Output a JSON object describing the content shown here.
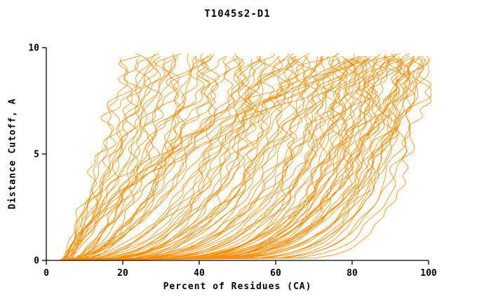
{
  "chart_data": {
    "type": "line",
    "title": "T1045s2-D1",
    "xlabel": "Percent of Residues (CA)",
    "ylabel": "Distance Cutoff, A",
    "xlim": [
      0,
      100
    ],
    "ylim": [
      0,
      10
    ],
    "x_ticks": [
      0,
      20,
      40,
      60,
      80,
      100
    ],
    "y_ticks": [
      0,
      5,
      10
    ],
    "grid": false,
    "legend": null,
    "line_color": "#ff8c00",
    "axis_color": "#000000",
    "background": "#ffffff",
    "y_top_reach": 9.7,
    "curve_param_format": [
      "x_percent_at_cutoff_0",
      "x_percent_at_cutoff_10",
      "shape_exponent"
    ],
    "curves": [
      [
        5,
        22,
        1.2
      ],
      [
        4,
        24,
        1.4
      ],
      [
        6,
        26,
        1.1
      ],
      [
        5,
        28,
        1.6
      ],
      [
        4,
        30,
        1.3
      ],
      [
        6,
        32,
        1.8
      ],
      [
        5,
        34,
        1.2
      ],
      [
        7,
        36,
        1.5
      ],
      [
        4,
        38,
        1.9
      ],
      [
        6,
        40,
        1.4
      ],
      [
        5,
        42,
        2.2
      ],
      [
        8,
        44,
        1.6
      ],
      [
        4,
        46,
        2.0
      ],
      [
        6,
        48,
        1.3
      ],
      [
        5,
        25,
        0.9
      ],
      [
        7,
        29,
        1.0
      ],
      [
        4,
        33,
        2.4
      ],
      [
        6,
        37,
        1.1
      ],
      [
        5,
        41,
        2.6
      ],
      [
        8,
        45,
        1.7
      ],
      [
        4,
        27,
        1.5
      ],
      [
        6,
        31,
        2.0
      ],
      [
        5,
        35,
        0.8
      ],
      [
        7,
        39,
        2.3
      ],
      [
        4,
        43,
        1.2
      ],
      [
        5,
        50,
        2.0
      ],
      [
        6,
        52,
        2.5
      ],
      [
        4,
        54,
        1.8
      ],
      [
        7,
        56,
        3.0
      ],
      [
        5,
        58,
        2.2
      ],
      [
        6,
        60,
        3.4
      ],
      [
        4,
        62,
        2.0
      ],
      [
        8,
        64,
        2.8
      ],
      [
        5,
        66,
        3.6
      ],
      [
        6,
        68,
        2.4
      ],
      [
        4,
        70,
        3.0
      ],
      [
        7,
        72,
        4.0
      ],
      [
        5,
        74,
        2.6
      ],
      [
        6,
        51,
        1.6
      ],
      [
        4,
        55,
        3.2
      ],
      [
        7,
        59,
        2.1
      ],
      [
        5,
        63,
        3.8
      ],
      [
        6,
        67,
        2.3
      ],
      [
        4,
        71,
        4.2
      ],
      [
        8,
        73,
        2.7
      ],
      [
        5,
        53,
        1.9
      ],
      [
        6,
        57,
        3.5
      ],
      [
        4,
        61,
        2.5
      ],
      [
        7,
        65,
        4.4
      ],
      [
        5,
        69,
        2.9
      ],
      [
        6,
        50,
        4.0
      ],
      [
        4,
        60,
        1.7
      ],
      [
        7,
        70,
        3.3
      ],
      [
        5,
        64,
        2.2
      ],
      [
        6,
        58,
        4.6
      ],
      [
        5,
        75,
        3.0
      ],
      [
        6,
        76,
        3.5
      ],
      [
        4,
        77,
        4.0
      ],
      [
        7,
        78,
        4.5
      ],
      [
        5,
        79,
        5.0
      ],
      [
        6,
        80,
        3.2
      ],
      [
        4,
        81,
        5.5
      ],
      [
        8,
        82,
        3.8
      ],
      [
        5,
        83,
        6.0
      ],
      [
        6,
        84,
        4.2
      ],
      [
        4,
        85,
        6.5
      ],
      [
        7,
        86,
        4.8
      ],
      [
        5,
        87,
        7.0
      ],
      [
        6,
        88,
        5.2
      ],
      [
        4,
        89,
        5.8
      ],
      [
        8,
        90,
        4.0
      ],
      [
        5,
        91,
        6.2
      ],
      [
        6,
        92,
        5.0
      ],
      [
        4,
        93,
        7.5
      ],
      [
        7,
        94,
        5.6
      ],
      [
        5,
        95,
        8.0
      ],
      [
        6,
        96,
        6.4
      ],
      [
        4,
        97,
        5.2
      ],
      [
        7,
        98,
        7.0
      ],
      [
        5,
        99,
        6.0
      ],
      [
        6,
        100,
        8.5
      ],
      [
        4,
        100,
        10.0
      ],
      [
        8,
        99,
        4.6
      ],
      [
        5,
        98,
        5.4
      ],
      [
        6,
        97,
        7.8
      ],
      [
        4,
        96,
        4.4
      ],
      [
        7,
        95,
        6.8
      ],
      [
        5,
        94,
        4.8
      ],
      [
        6,
        93,
        8.2
      ],
      [
        4,
        92,
        6.6
      ],
      [
        8,
        91,
        5.4
      ],
      [
        5,
        90,
        7.2
      ],
      [
        6,
        89,
        4.4
      ],
      [
        4,
        88,
        6.0
      ],
      [
        7,
        87,
        5.0
      ],
      [
        5,
        86,
        7.6
      ],
      [
        6,
        85,
        4.6
      ],
      [
        4,
        84,
        5.4
      ],
      [
        7,
        83,
        3.6
      ],
      [
        5,
        82,
        6.8
      ],
      [
        6,
        81,
        4.2
      ],
      [
        4,
        80,
        7.4
      ],
      [
        8,
        79,
        3.4
      ],
      [
        5,
        78,
        5.8
      ],
      [
        6,
        77,
        3.2
      ],
      [
        4,
        76,
        6.2
      ],
      [
        7,
        75,
        4.4
      ],
      [
        5,
        100,
        12.0
      ],
      [
        6,
        98,
        9.0
      ],
      [
        4,
        95,
        9.5
      ],
      [
        5,
        80,
        0.7
      ],
      [
        6,
        90,
        0.6
      ],
      [
        4,
        70,
        0.8
      ],
      [
        5,
        95,
        0.65
      ],
      [
        6,
        85,
        0.75
      ],
      [
        4,
        88,
        0.55
      ]
    ]
  }
}
